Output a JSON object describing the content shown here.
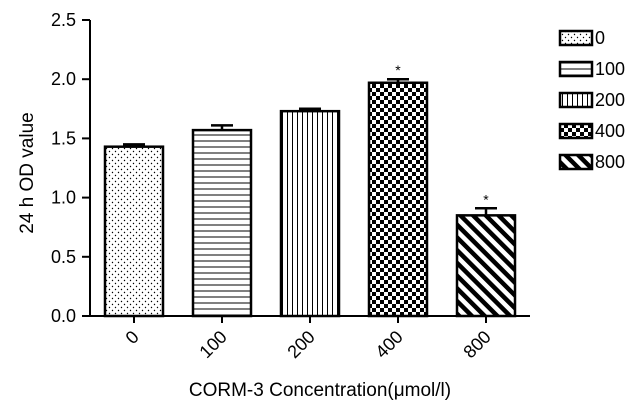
{
  "chart_data": {
    "type": "bar",
    "xlabel": "CORM-3 Concentration(μmol/l)",
    "ylabel": "24 h OD value",
    "ylim": [
      0,
      2.5
    ],
    "yticks": [
      0.0,
      0.5,
      1.0,
      1.5,
      2.0,
      2.5
    ],
    "ytick_labels": [
      "0.0",
      "0.5",
      "1.0",
      "1.5",
      "2.0",
      "2.5"
    ],
    "categories": [
      "0",
      "100",
      "200",
      "400",
      "800"
    ],
    "values": [
      1.43,
      1.57,
      1.73,
      1.97,
      0.85
    ],
    "errors": [
      0.02,
      0.04,
      0.02,
      0.03,
      0.06
    ],
    "significance": [
      "",
      "",
      "",
      "*",
      "*"
    ],
    "patterns": [
      "dots",
      "horizontal-lines",
      "vertical-lines",
      "checker",
      "diagonal-lines"
    ],
    "legend": {
      "placement": "right",
      "entries": [
        "0",
        "100",
        "200",
        "400",
        "800"
      ]
    },
    "grid": false
  }
}
